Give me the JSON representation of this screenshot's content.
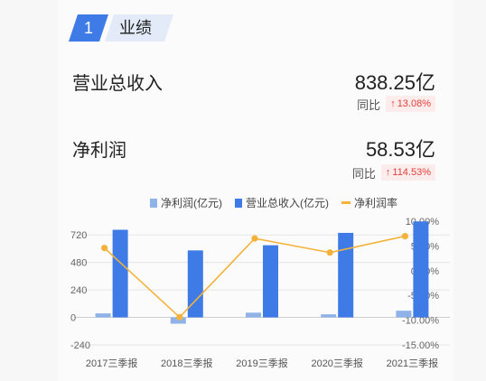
{
  "section": {
    "number": "1",
    "title": "业绩"
  },
  "revenue": {
    "label": "营业总收入",
    "value": "838.25亿",
    "yoy_label": "同比",
    "yoy_value": "13.08%"
  },
  "profit": {
    "label": "净利润",
    "value": "58.53亿",
    "yoy_label": "同比",
    "yoy_value": "114.53%"
  },
  "chart_data": {
    "type": "bar",
    "categories": [
      "2017三季报",
      "2018三季报",
      "2019三季报",
      "2020三季报",
      "2021三季报"
    ],
    "series": [
      {
        "name": "净利润(亿元)",
        "type": "bar",
        "axis": "left",
        "color": "#8fb3e8",
        "values": [
          35,
          -55,
          41,
          27,
          58.53
        ]
      },
      {
        "name": "营业总收入(亿元)",
        "type": "bar",
        "axis": "left",
        "color": "#3f7be6",
        "values": [
          765,
          585,
          630,
          738,
          838.25
        ]
      },
      {
        "name": "净利润率",
        "type": "line",
        "axis": "right",
        "color": "#f4b23a",
        "values": [
          4.58,
          -9.4,
          6.51,
          3.66,
          6.98
        ]
      }
    ],
    "left_axis": {
      "ticks": [
        "720",
        "480",
        "240",
        "0",
        "-240"
      ],
      "range": [
        -240,
        840
      ]
    },
    "right_axis": {
      "ticks": [
        "10.00%",
        "5.00%",
        "0.00%",
        "-5.00%",
        "-10.00%",
        "-15.00%"
      ],
      "range": [
        -15,
        10
      ]
    },
    "legend_position": "top-right",
    "grid": true
  },
  "legend": [
    {
      "label": "净利润(亿元)",
      "color": "#8fb3e8",
      "kind": "box"
    },
    {
      "label": "营业总收入(亿元)",
      "color": "#3f7be6",
      "kind": "box"
    },
    {
      "label": "净利润率",
      "color": "#f4b23a",
      "kind": "line"
    }
  ]
}
